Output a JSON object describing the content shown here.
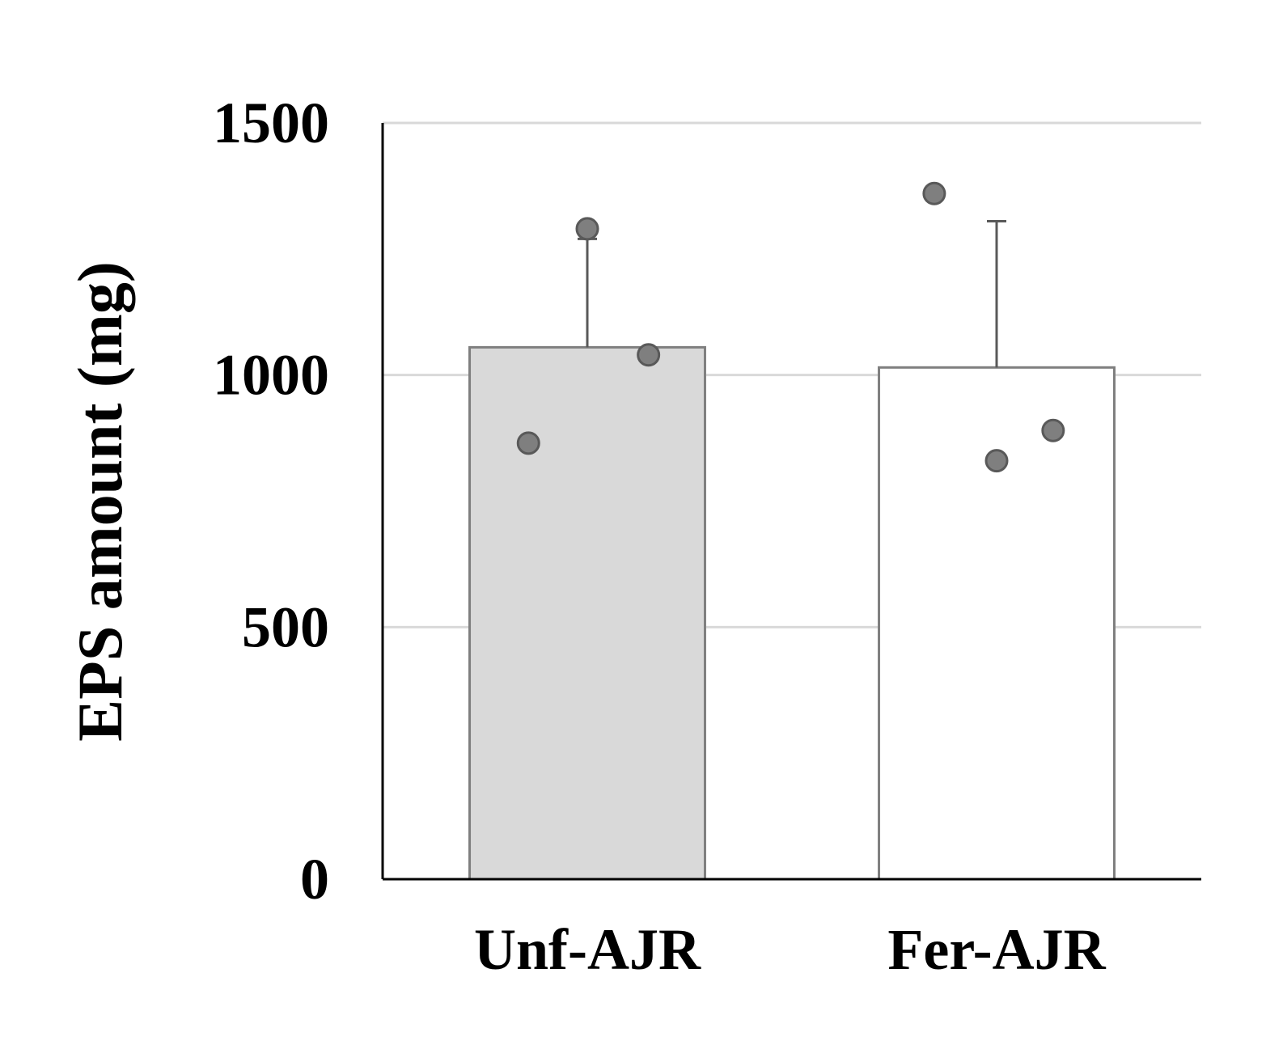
{
  "chart_data": {
    "type": "bar",
    "title": "",
    "xlabel": "",
    "ylabel": "EPS amount (mg)",
    "ylim": [
      0,
      1500
    ],
    "yticks": [
      0,
      500,
      1000,
      1500
    ],
    "ytick_labels": [
      "0",
      "500",
      "1000",
      "1500"
    ],
    "grid": true,
    "categories": [
      "Unf-AJR",
      "Fer-AJR"
    ],
    "values": [
      1055,
      1015
    ],
    "error_upper": [
      1270,
      1305
    ],
    "points": [
      [
        1290,
        865,
        1040
      ],
      [
        1360,
        830,
        890
      ]
    ],
    "bar_colors": [
      "#d9d9d9",
      "#ffffff"
    ],
    "bar_edge_color": "#7f7f7f",
    "point_color": "#7f7f7f",
    "grid_color": "#d9d9d9"
  }
}
